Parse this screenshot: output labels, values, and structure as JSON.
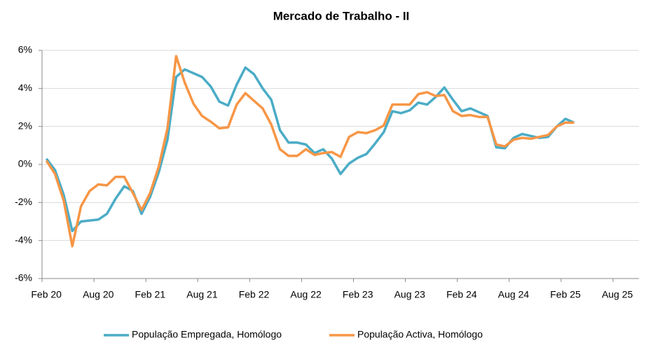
{
  "chart_data": {
    "type": "line",
    "title": "Mercado de Trabalho  - II",
    "categories": [
      "Feb 20",
      null,
      null,
      null,
      null,
      null,
      "Aug 20",
      null,
      null,
      null,
      null,
      null,
      "Feb 21",
      null,
      null,
      null,
      null,
      null,
      "Aug 21",
      null,
      null,
      null,
      null,
      null,
      "Feb 22",
      null,
      null,
      null,
      null,
      null,
      "Aug 22",
      null,
      null,
      null,
      null,
      null,
      "Feb 23",
      null,
      null,
      null,
      null,
      null,
      "Aug 23",
      null,
      null,
      null,
      null,
      null,
      "Feb 24",
      null,
      null,
      null,
      null,
      null,
      "Aug 24",
      null,
      null,
      null,
      null,
      null,
      "Feb 25",
      null,
      null,
      null,
      null,
      null,
      "Aug 25",
      null,
      null
    ],
    "series": [
      {
        "name": "População Empregada, Homólogo",
        "color": "#4bacc6",
        "values": [
          0.3,
          -0.3,
          -1.6,
          -3.5,
          -3.0,
          -2.95,
          -2.9,
          -2.6,
          -1.8,
          -1.15,
          -1.4,
          -2.6,
          -1.7,
          -0.4,
          1.3,
          4.6,
          5.0,
          4.8,
          4.6,
          4.1,
          3.3,
          3.1,
          4.2,
          5.1,
          4.75,
          4.0,
          3.4,
          1.8,
          1.15,
          1.15,
          1.05,
          0.6,
          0.8,
          0.3,
          -0.5,
          0.05,
          0.35,
          0.55,
          1.1,
          1.7,
          2.8,
          2.7,
          2.85,
          3.25,
          3.15,
          3.55,
          4.05,
          3.4,
          2.8,
          2.95,
          2.75,
          2.55,
          0.9,
          0.85,
          1.4,
          1.6,
          1.5,
          1.4,
          1.45,
          2.0,
          2.4,
          2.2,
          null,
          null,
          null,
          null,
          null,
          null,
          null
        ]
      },
      {
        "name": "População Activa, Homólogo",
        "color": "#f79646",
        "values": [
          0.2,
          -0.5,
          -1.9,
          -4.3,
          -2.2,
          -1.4,
          -1.05,
          -1.1,
          -0.65,
          -0.65,
          -1.5,
          -2.4,
          -1.5,
          -0.1,
          1.9,
          5.7,
          4.3,
          3.2,
          2.55,
          2.25,
          1.9,
          1.95,
          3.15,
          3.75,
          3.35,
          2.95,
          2.1,
          0.8,
          0.45,
          0.45,
          0.8,
          0.5,
          0.6,
          0.65,
          0.4,
          1.45,
          1.7,
          1.65,
          1.8,
          2.05,
          3.15,
          3.15,
          3.15,
          3.7,
          3.8,
          3.6,
          3.65,
          2.8,
          2.55,
          2.6,
          2.5,
          2.5,
          1.05,
          0.95,
          1.3,
          1.4,
          1.35,
          1.45,
          1.55,
          2.0,
          2.2,
          2.2,
          null,
          null,
          null,
          null,
          null,
          null,
          null
        ]
      }
    ],
    "ylim": [
      -6,
      6
    ],
    "yticks": [
      {
        "value": -6,
        "label": "-6%"
      },
      {
        "value": -4,
        "label": "-4%"
      },
      {
        "value": -2,
        "label": "-2%"
      },
      {
        "value": 0,
        "label": "0%"
      },
      {
        "value": 2,
        "label": "2%"
      },
      {
        "value": 4,
        "label": "4%"
      },
      {
        "value": 6,
        "label": "6%"
      }
    ],
    "grid": true,
    "legend": "bottom"
  }
}
